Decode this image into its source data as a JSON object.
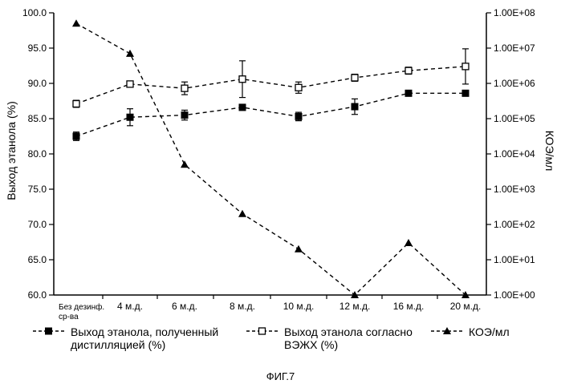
{
  "chart_data": {
    "type": "line",
    "categories": [
      "Без дезинф.\nср-ва",
      "4 м.д.",
      "6 м.д.",
      "8 м.д.",
      "10 м.д.",
      "12 м.д.",
      "16 м.д.",
      "20 м.д."
    ],
    "ylabel_left": "Выход этанола (%)",
    "ylabel_right": "КОЭ/мл",
    "ylim_left": [
      60.0,
      100.0
    ],
    "yticks_left": [
      "60.0",
      "65.0",
      "70.0",
      "75.0",
      "80.0",
      "85.0",
      "90.0",
      "95.0",
      "100.0"
    ],
    "ylim_right": [
      1,
      100000000
    ],
    "right_scale": "log",
    "yticks_right": [
      "1.00E+00",
      "1.00E+01",
      "1.00E+02",
      "1.00E+03",
      "1.00E+04",
      "1.00E+05",
      "1.00E+06",
      "1.00E+07",
      "1.00E+08"
    ],
    "series": [
      {
        "name": "Выход этанола, полученный\nдистилляцией (%)",
        "axis": "left",
        "marker": "filled-square",
        "values": [
          82.5,
          85.2,
          85.5,
          86.6,
          85.3,
          86.7,
          88.6,
          88.6
        ],
        "errors": [
          0.6,
          1.2,
          0.7,
          0.4,
          0.6,
          1.1,
          0.0,
          0.0
        ]
      },
      {
        "name": "Выход этанола согласно\nВЭЖХ (%)",
        "axis": "left",
        "marker": "open-square",
        "values": [
          87.1,
          89.9,
          89.3,
          90.6,
          89.4,
          90.8,
          91.8,
          92.4
        ],
        "errors": [
          0.5,
          0.4,
          0.9,
          2.6,
          0.8,
          0.5,
          0.5,
          2.5
        ]
      },
      {
        "name": "КОЭ/мл",
        "axis": "right",
        "marker": "filled-triangle",
        "values": [
          50000000,
          7000000,
          5000,
          200,
          20,
          1,
          30,
          1
        ]
      }
    ],
    "grid": false,
    "legend_position": "bottom"
  },
  "figure_caption": "ФИГ.7"
}
